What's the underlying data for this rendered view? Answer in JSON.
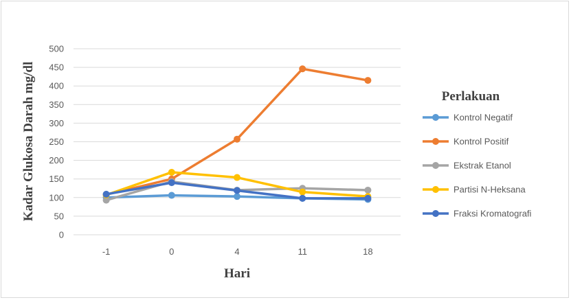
{
  "chart_data": {
    "type": "line",
    "categories": [
      "-1",
      "0",
      "4",
      "11",
      "18"
    ],
    "xlabel": "Hari",
    "ylabel": "Kadar Glukosa Darah mg/dl",
    "ylim": [
      0,
      500
    ],
    "yticks": [
      0,
      50,
      100,
      150,
      200,
      250,
      300,
      350,
      400,
      450,
      500
    ],
    "grid": true,
    "legend_title": "Perlakuan",
    "legend_position": "right",
    "series": [
      {
        "name": "Kontrol Negatif",
        "color": "#5b9bd5",
        "values": [
          100,
          106,
          103,
          98,
          95
        ]
      },
      {
        "name": "Kontrol Positif",
        "color": "#ed7d31",
        "values": [
          108,
          150,
          257,
          446,
          415
        ]
      },
      {
        "name": "Ekstrak Etanol",
        "color": "#a5a5a5",
        "values": [
          93,
          143,
          120,
          125,
          120
        ]
      },
      {
        "name": "Partisi N-Heksana",
        "color": "#ffc000",
        "values": [
          107,
          168,
          154,
          115,
          103
        ]
      },
      {
        "name": "Fraksi Kromatografi",
        "color": "#4472c4",
        "values": [
          109,
          140,
          119,
          98,
          98
        ]
      }
    ]
  }
}
